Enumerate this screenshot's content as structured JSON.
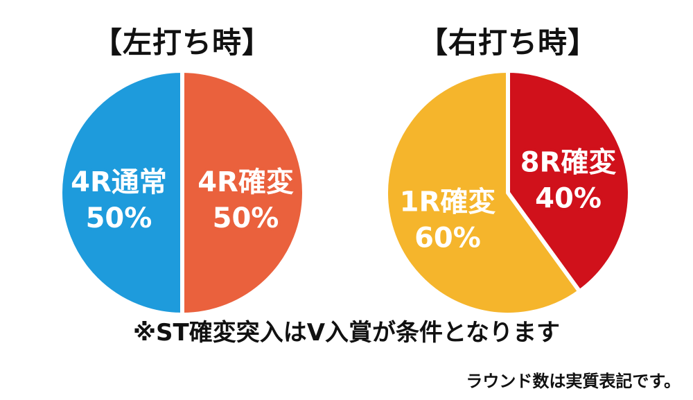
{
  "chart_data": [
    {
      "type": "pie",
      "title": "【左打ち時】",
      "slices": [
        {
          "label": "4R通常",
          "value": 50,
          "display": "50%",
          "color": "#1e9bdc"
        },
        {
          "label": "4R確変",
          "value": 50,
          "display": "50%",
          "color": "#ea613d"
        }
      ]
    },
    {
      "type": "pie",
      "title": "【右打ち時】",
      "slices": [
        {
          "label": "1R確変",
          "value": 60,
          "display": "60%",
          "color": "#f5b52c"
        },
        {
          "label": "8R確変",
          "value": 40,
          "display": "40%",
          "color": "#d0111b"
        }
      ]
    }
  ],
  "note": "※ST確変突入はV入賞が条件となります",
  "footnote": "ラウンド数は実質表記です。"
}
